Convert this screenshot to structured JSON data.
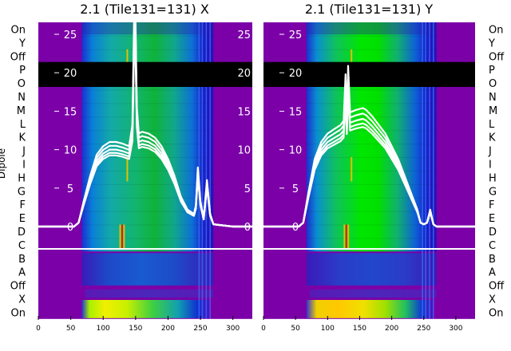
{
  "chart_data": [
    {
      "type": "heatmap",
      "title": "2.1 (Tile131=131) X",
      "ylabel": "Dipole",
      "xlim": [
        0,
        330
      ],
      "xticks": [
        0,
        50,
        100,
        150,
        200,
        250,
        300
      ],
      "rows": [
        "On",
        "Y",
        "Off",
        "P",
        "O",
        "N",
        "M",
        "L",
        "K",
        "J",
        "I",
        "H",
        "G",
        "F",
        "E",
        "D",
        "C",
        "B",
        "A",
        "Off",
        "X",
        "On"
      ],
      "overlay_ylim": [
        -2,
        27
      ],
      "overlay_yticks": [
        0,
        5,
        10,
        15,
        20,
        25
      ],
      "band_start": 67,
      "band_end": 270,
      "colors": {
        "background": "#7b00a8",
        "masked": "#000000",
        "divider": "#ffffff",
        "curve": "#ffffff"
      },
      "curve": {
        "x": [
          0,
          30,
          55,
          62,
          70,
          80,
          90,
          100,
          110,
          120,
          130,
          140,
          145,
          148,
          150,
          152,
          155,
          160,
          170,
          180,
          190,
          200,
          210,
          220,
          230,
          240,
          243,
          246,
          250,
          255,
          260,
          265,
          270,
          280,
          300,
          330
        ],
        "y": [
          0,
          0,
          0,
          0.5,
          3,
          6,
          8.5,
          9.5,
          10,
          10,
          9.8,
          9.5,
          12,
          26,
          24,
          14,
          11,
          11.2,
          11,
          10.5,
          9.5,
          8,
          6,
          3.5,
          2,
          1.5,
          2.5,
          7,
          3,
          1,
          5.5,
          1.5,
          0.3,
          0.2,
          0,
          0
        ]
      }
    },
    {
      "type": "heatmap",
      "title": "2.1 (Tile131=131) Y",
      "ylabel": "",
      "xlim": [
        0,
        330
      ],
      "xticks": [
        0,
        50,
        100,
        150,
        200,
        250,
        300
      ],
      "rows": [
        "On",
        "Y",
        "Off",
        "P",
        "O",
        "N",
        "M",
        "L",
        "K",
        "J",
        "I",
        "H",
        "G",
        "F",
        "E",
        "D",
        "C",
        "B",
        "A",
        "Off",
        "X",
        "On"
      ],
      "overlay_ylim": [
        -2,
        27
      ],
      "overlay_yticks": [
        0,
        5,
        10,
        15,
        20,
        25
      ],
      "band_start": 67,
      "band_end": 270,
      "colors": {
        "background": "#7b00a8",
        "masked": "#000000",
        "divider": "#ffffff",
        "curve": "#ffffff"
      },
      "curve": {
        "x": [
          0,
          30,
          55,
          62,
          70,
          80,
          90,
          100,
          110,
          120,
          125,
          128,
          130,
          132,
          135,
          145,
          155,
          160,
          170,
          180,
          190,
          200,
          210,
          220,
          230,
          240,
          245,
          250,
          255,
          260,
          265,
          270,
          330
        ],
        "y": [
          0,
          0,
          0,
          0.5,
          4,
          8,
          10,
          11,
          11.5,
          12,
          12.5,
          18,
          13,
          19,
          13.5,
          13.8,
          14,
          13.8,
          13,
          12,
          11,
          9.5,
          8,
          6,
          4,
          2,
          0.5,
          0.3,
          0.5,
          2,
          0.3,
          0,
          0
        ]
      }
    }
  ]
}
